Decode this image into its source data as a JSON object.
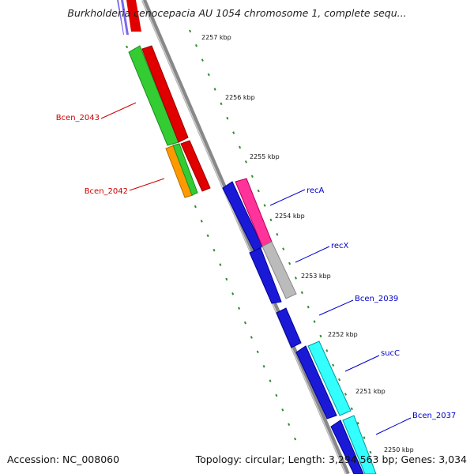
{
  "title": "Burkholderia cenocepacia AU 1054 chromosome 1, complete sequ...",
  "accession_label": "Accession: NC_008060",
  "summary_label": "Topology: circular; Length: 3,294,563 bp; Genes: 3,034",
  "kbp_ticks": [
    "2257 kbp",
    "2256 kbp",
    "2255 kbp",
    "2254 kbp",
    "2253 kbp",
    "2252 kbp",
    "2251 kbp",
    "2250 kbp"
  ],
  "genes": [
    {
      "label": "Bcen_2043",
      "color": "#cc0000"
    },
    {
      "label": "Bcen_2042",
      "color": "#cc0000"
    },
    {
      "label": "recA",
      "color": "#0000cc"
    },
    {
      "label": "recX",
      "color": "#0000cc"
    },
    {
      "label": "Bcen_2039",
      "color": "#0000cc"
    },
    {
      "label": "sucC",
      "color": "#0000cc"
    },
    {
      "label": "Bcen_2037",
      "color": "#0000cc"
    }
  ],
  "colors": {
    "backbone": "#888888",
    "dots": "#2e8b2e",
    "forward_cds": "#e00000",
    "reverse_cds": "#1a1ad6",
    "rrna_green": "#33cc33",
    "orange": "#ff9900",
    "pink": "#ff3399",
    "gray": "#bbbbbb",
    "cyan": "#33ffff"
  }
}
